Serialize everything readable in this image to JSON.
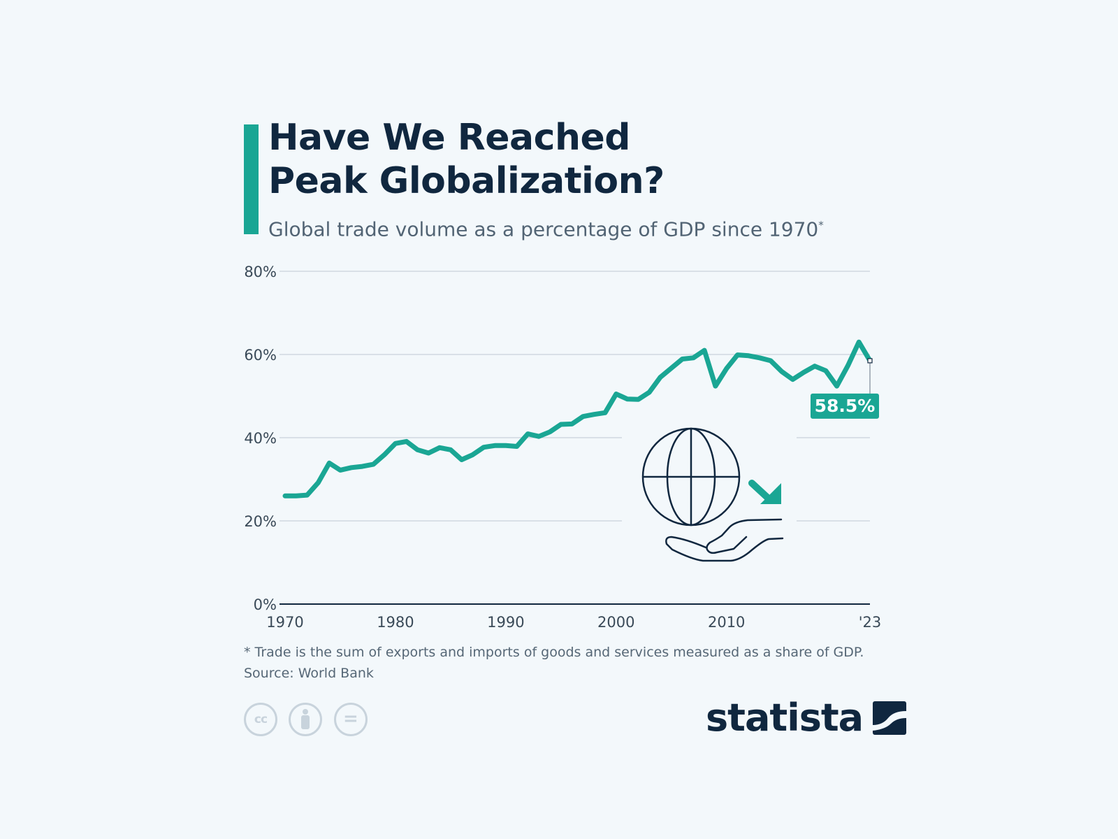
{
  "header": {
    "title_line1": "Have We Reached",
    "title_line2": "Peak Globalization?",
    "subtitle": "Global trade volume as a percentage of GDP since 1970",
    "subtitle_mark": "*",
    "accent_color": "#1aa694"
  },
  "chart_data": {
    "type": "line",
    "title": "",
    "xlabel": "",
    "ylabel": "",
    "ylim": [
      0,
      80
    ],
    "y_ticks": [
      "0%",
      "20%",
      "40%",
      "60%",
      "80%"
    ],
    "x_ticks": [
      "1970",
      "1980",
      "1990",
      "2000",
      "2010",
      "'23"
    ],
    "x_tick_values": [
      1970,
      1980,
      1990,
      2000,
      2010,
      2023
    ],
    "grid": true,
    "series": [
      {
        "color": "#1aa694",
        "x": [
          1970,
          1971,
          1972,
          1973,
          1974,
          1975,
          1976,
          1977,
          1978,
          1979,
          1980,
          1981,
          1982,
          1983,
          1984,
          1985,
          1986,
          1987,
          1988,
          1989,
          1990,
          1991,
          1992,
          1993,
          1994,
          1995,
          1996,
          1997,
          1998,
          1999,
          2000,
          2001,
          2002,
          2003,
          2004,
          2005,
          2006,
          2007,
          2008,
          2009,
          2010,
          2011,
          2012,
          2013,
          2014,
          2015,
          2016,
          2017,
          2018,
          2019,
          2020,
          2021,
          2022,
          2023
        ],
        "values": [
          26.0,
          26.0,
          26.2,
          29.2,
          33.9,
          32.2,
          32.8,
          33.1,
          33.6,
          35.9,
          38.6,
          39.1,
          37.1,
          36.3,
          37.6,
          37.1,
          34.7,
          35.9,
          37.7,
          38.1,
          38.1,
          37.9,
          40.9,
          40.3,
          41.4,
          43.2,
          43.3,
          45.1,
          45.6,
          46.0,
          50.5,
          49.3,
          49.2,
          50.9,
          54.5,
          56.7,
          58.9,
          59.2,
          61.0,
          52.4,
          56.6,
          59.9,
          59.7,
          59.2,
          58.5,
          55.9,
          54.0,
          55.7,
          57.2,
          56.1,
          52.4,
          57.3,
          63.0,
          58.5
        ]
      }
    ],
    "annotation": {
      "label": "58.5%",
      "x": 2023,
      "value": 58.5
    }
  },
  "footnote": {
    "note": "* Trade is the sum of exports and imports of goods and services measured as a share of GDP.",
    "source": "Source: World Bank"
  },
  "license_icons": [
    "cc-icon",
    "by-attribution-icon",
    "no-derivatives-icon"
  ],
  "license_text": {
    "cc": "cc",
    "nd": "="
  },
  "brand": {
    "name": "statista",
    "color": "#10273f"
  }
}
